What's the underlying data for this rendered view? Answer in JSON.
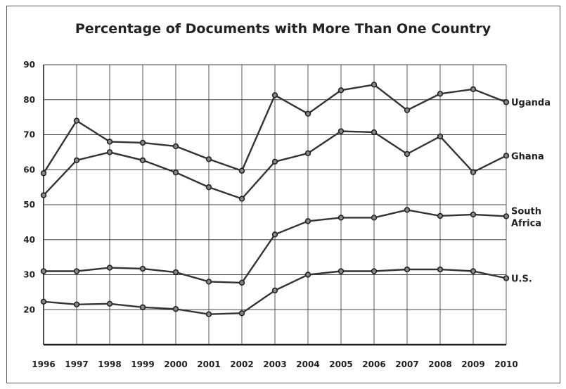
{
  "chart_data": {
    "type": "line",
    "title": "Percentage of Documents with More Than One Country",
    "xlabel": "",
    "ylabel": "",
    "x": [
      "1996",
      "1997",
      "1998",
      "1999",
      "2000",
      "2001",
      "2002",
      "2003",
      "2004",
      "2005",
      "2006",
      "2007",
      "2008",
      "2009",
      "2010"
    ],
    "yticks": [
      "20",
      "30",
      "40",
      "50",
      "60",
      "70",
      "80",
      "90"
    ],
    "ylim": [
      10,
      90
    ],
    "grid": true,
    "series": [
      {
        "name": "Uganda",
        "label_lines": [
          "Uganda"
        ],
        "values": [
          59,
          74,
          68,
          67.7,
          66.7,
          63,
          59.7,
          81.3,
          76,
          82.7,
          84.3,
          77,
          81.7,
          83,
          79.3
        ]
      },
      {
        "name": "Ghana",
        "label_lines": [
          "Ghana"
        ],
        "values": [
          52.7,
          62.7,
          65,
          62.7,
          59.2,
          55,
          51.7,
          62.3,
          64.7,
          71,
          70.7,
          64.5,
          69.5,
          59.3,
          64
        ]
      },
      {
        "name": "South Africa",
        "label_lines": [
          "South",
          "Africa"
        ],
        "values": [
          31,
          31,
          32,
          31.7,
          30.7,
          28,
          27.7,
          41.5,
          45.3,
          46.3,
          46.3,
          48.5,
          46.8,
          47.2,
          46.7
        ]
      },
      {
        "name": "U.S.",
        "label_lines": [
          "U.S."
        ],
        "values": [
          22.3,
          21.5,
          21.7,
          20.7,
          20.2,
          18.7,
          19,
          25.5,
          30,
          31,
          31,
          31.5,
          31.5,
          31,
          29
        ]
      }
    ]
  }
}
